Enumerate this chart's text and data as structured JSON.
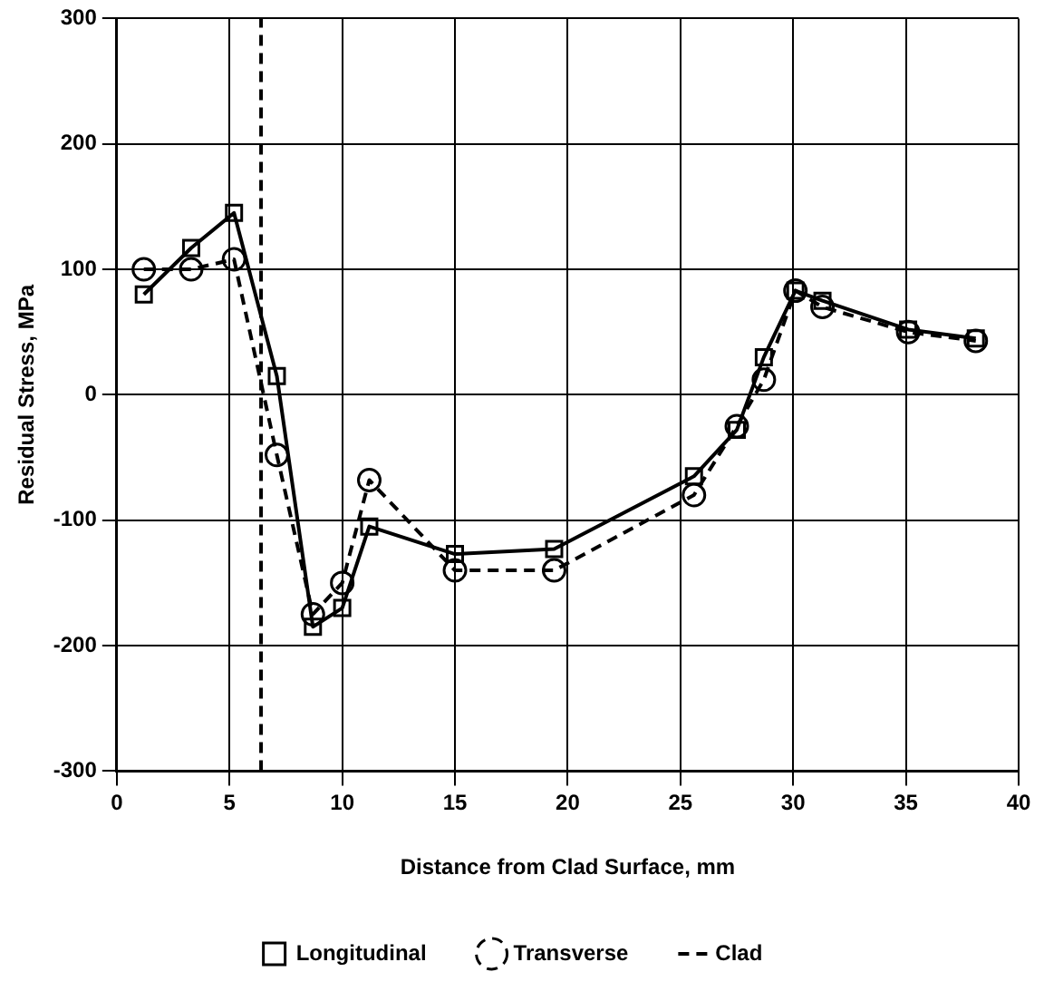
{
  "chart_data": {
    "type": "line",
    "xlabel": "Distance from Clad Surface, mm",
    "ylabel": "Residual Stress, MPa",
    "xlim": [
      0,
      40
    ],
    "xticks": [
      0,
      5,
      10,
      15,
      20,
      25,
      30,
      35,
      40
    ],
    "ylim": [
      -300,
      300
    ],
    "yticks": [
      -300,
      -200,
      -100,
      0,
      100,
      200,
      300
    ],
    "grid": true,
    "legend": "bottom",
    "series": [
      {
        "name": "Longitudinal",
        "color": "#000000",
        "marker": "square",
        "line_style": "solid",
        "x": [
          1.2,
          3.3,
          5.2,
          7.1,
          8.7,
          10,
          11.2,
          15,
          19.4,
          25.6,
          27.5,
          28.7,
          30.1,
          31.3,
          35.1,
          38.1
        ],
        "values": [
          80,
          117,
          145,
          15,
          -185,
          -170,
          -105,
          -127,
          -123,
          -65,
          -28,
          30,
          83,
          75,
          52,
          45
        ]
      },
      {
        "name": "Transverse",
        "color": "#000000",
        "marker": "circle",
        "line_style": "dashed",
        "x": [
          1.2,
          3.3,
          5.2,
          7.1,
          8.7,
          10,
          11.2,
          15,
          19.4,
          25.6,
          27.5,
          28.7,
          30.1,
          31.3,
          35.1,
          38.1
        ],
        "values": [
          100,
          100,
          108,
          -48,
          -175,
          -150,
          -68,
          -140,
          -140,
          -80,
          -25,
          12,
          83,
          70,
          50,
          43
        ]
      },
      {
        "name": "Clad",
        "color": "#000000",
        "marker": "none",
        "line_style": "dashed",
        "x": [
          6.4,
          6.4
        ],
        "values": [
          -300,
          300
        ]
      }
    ]
  }
}
